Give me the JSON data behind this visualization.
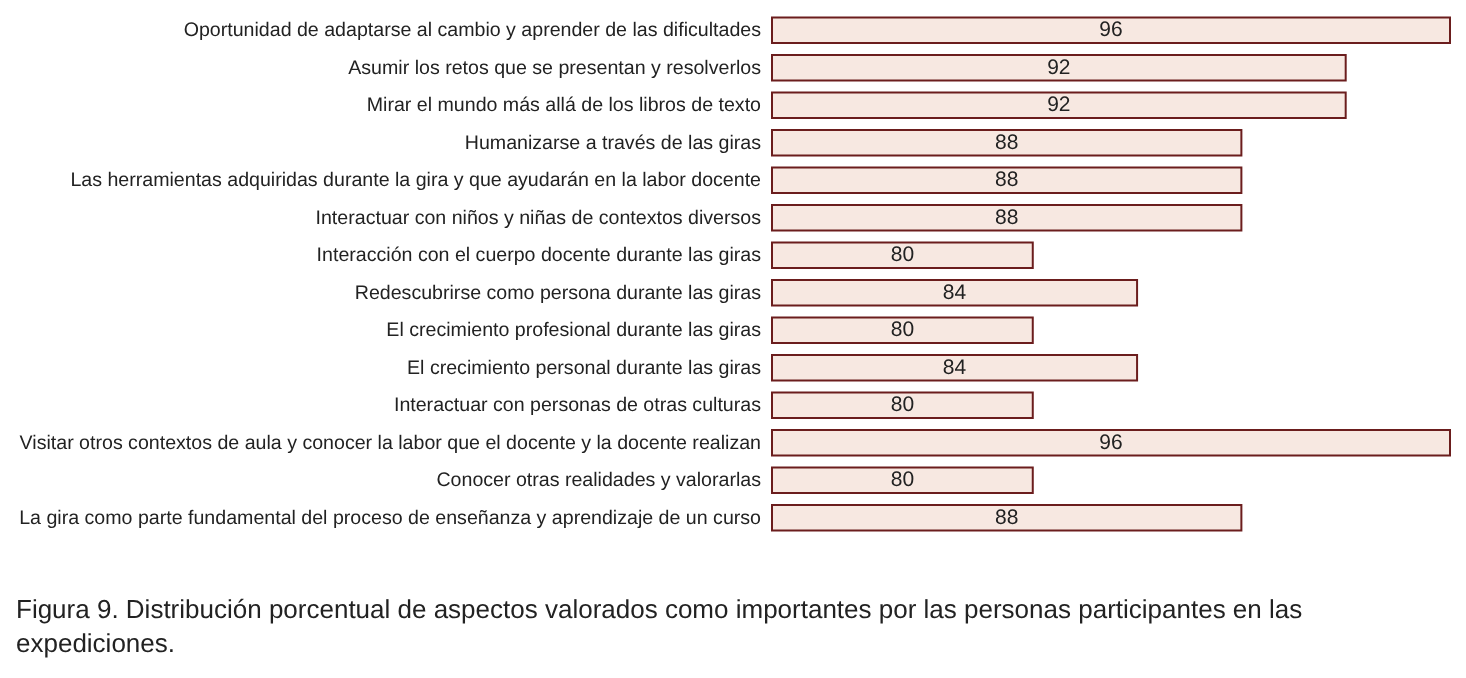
{
  "chart_data": {
    "type": "bar",
    "orientation": "horizontal",
    "categories": [
      "Oportunidad de adaptarse al cambio y aprender de las dificultades",
      "Asumir los retos que se presentan y resolverlos",
      "Mirar el mundo más allá de los libros de texto",
      "Humanizarse a través de las giras",
      "Las herramientas adquiridas durante la gira y que ayudarán en la labor docente",
      "Interactuar con niños y niñas de contextos diversos",
      "Interacción con el cuerpo docente durante las giras",
      "Redescubrirse como persona durante las giras",
      "El crecimiento profesional durante las giras",
      "El crecimiento personal durante las giras",
      "Interactuar con personas de otras culturas",
      "Visitar otros contextos de aula y conocer la labor que el docente y la docente realizan",
      "Conocer otras realidades y valorarlas",
      "La gira como parte fundamental del proceso de enseñanza y aprendizaje de un curso"
    ],
    "values": [
      96,
      92,
      92,
      88,
      88,
      88,
      80,
      84,
      80,
      84,
      80,
      96,
      80,
      88
    ],
    "color": "#f7e8e1",
    "xlim": [
      70,
      96
    ],
    "data_labels": true,
    "annotations": [
      "Figura 9. Distribución porcentual de aspectos valorados como importantes por las personas participantes en las expediciones."
    ]
  }
}
